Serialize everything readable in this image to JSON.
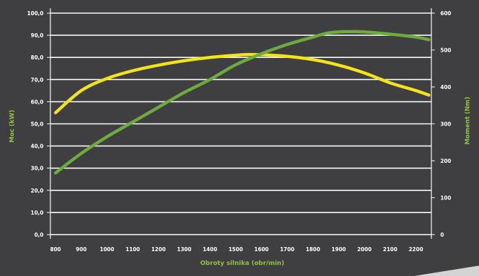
{
  "chart_data": {
    "type": "line",
    "xlabel": "Obroty silnika (obr/min)",
    "ylabel": "Moc (kW)",
    "y2label": "Moment (Nm)",
    "x_ticks": [
      800,
      900,
      1000,
      1100,
      1200,
      1300,
      1400,
      1500,
      1600,
      1700,
      1800,
      1900,
      2000,
      2100,
      2200
    ],
    "xlim": [
      780,
      2260
    ],
    "y_ticks": [
      "0,0",
      "10,0",
      "20,0",
      "30,0",
      "40,0",
      "50,0",
      "60,0",
      "70,0",
      "80,0",
      "90,0",
      "100,0"
    ],
    "ylim": [
      0,
      100
    ],
    "y2_ticks": [
      0,
      100,
      200,
      300,
      400,
      500,
      600
    ],
    "y2lim": [
      0,
      600
    ],
    "grid": true,
    "colors": {
      "power": "#f2e31b",
      "torque": "#6dab3c",
      "axis_title": "#8dc63f",
      "background": "#3f3f41",
      "grid": "#ffffff"
    },
    "series": [
      {
        "axis": "left",
        "color": "#f2e31b",
        "x": [
          800,
          900,
          1000,
          1100,
          1200,
          1300,
          1400,
          1500,
          1550,
          1600,
          1700,
          1800,
          1900,
          2000,
          2100,
          2200,
          2250
        ],
        "values": [
          55,
          65,
          70.5,
          74,
          76.5,
          78.5,
          80,
          81,
          81.3,
          81.2,
          80.5,
          79,
          76.5,
          73,
          68.5,
          65,
          63
        ]
      },
      {
        "axis": "right",
        "color": "#6dab3c",
        "x": [
          800,
          900,
          1000,
          1100,
          1200,
          1300,
          1400,
          1500,
          1600,
          1700,
          1800,
          1850,
          1900,
          1950,
          2000,
          2100,
          2200,
          2250
        ],
        "values": [
          167,
          220,
          265,
          305,
          345,
          385,
          420,
          460,
          490,
          515,
          535,
          545,
          549,
          550,
          549,
          543,
          535,
          528
        ]
      }
    ]
  }
}
